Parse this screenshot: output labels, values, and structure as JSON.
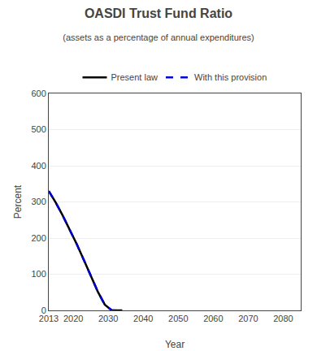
{
  "chart_data": {
    "type": "line",
    "title": "OASDI Trust Fund Ratio",
    "subtitle": "(assets as a percentage of annual expenditures)",
    "x_label": "Year",
    "y_label": "Percent",
    "x": [
      2013,
      2015,
      2017,
      2019,
      2021,
      2023,
      2025,
      2027,
      2029,
      2031,
      2033,
      2034
    ],
    "series": [
      {
        "name": "Present law",
        "color": "#000000",
        "line_style": "solid",
        "values": [
          330,
          298,
          262,
          224,
          183,
          140,
          96,
          52,
          16,
          0,
          0,
          0
        ]
      },
      {
        "name": "With this provision",
        "color": "#0000cc",
        "line_style": "dashed",
        "values": [
          330,
          298,
          262,
          224,
          183,
          140,
          96,
          52,
          16,
          0,
          0,
          0
        ]
      }
    ],
    "xlim": [
      2013,
      2085
    ],
    "xticks": [
      2013,
      2020,
      2030,
      2040,
      2050,
      2060,
      2070,
      2080
    ],
    "ylim": [
      0,
      600
    ],
    "yticks": [
      0,
      100,
      200,
      300,
      400,
      500,
      600
    ],
    "grid": "y",
    "legend": "top"
  }
}
